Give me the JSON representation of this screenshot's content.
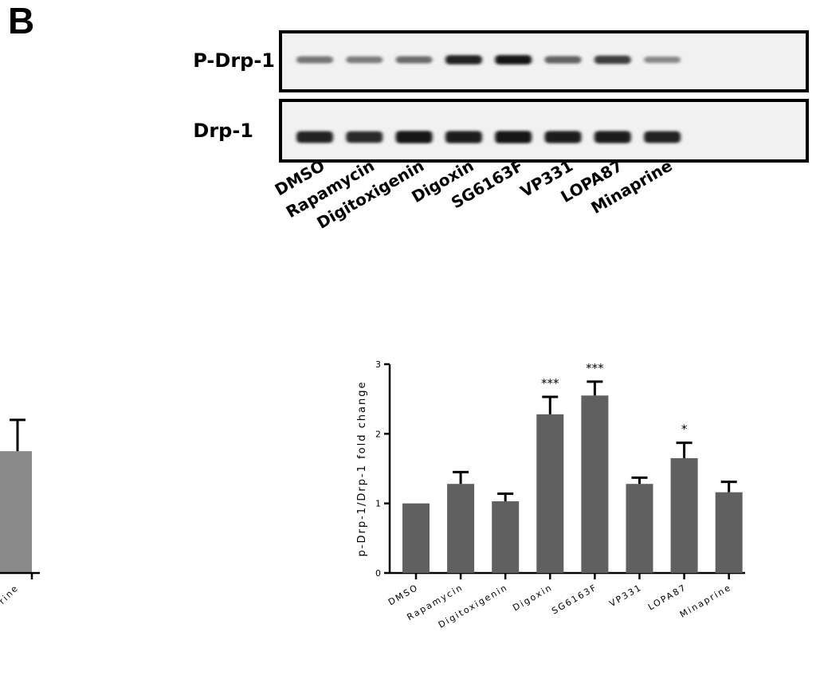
{
  "panel": {
    "letter": "B"
  },
  "blot": {
    "rows": [
      "P-Drp-1",
      "Drp-1"
    ],
    "lanes": [
      "DMSO",
      "Rapamycin",
      "Digitoxigenin",
      "Digoxin",
      "SG6163F",
      "VP331",
      "LOPA87",
      "Minaprine"
    ],
    "p_drp1_band_intensity": [
      0.45,
      0.42,
      0.5,
      0.9,
      0.95,
      0.55,
      0.75,
      0.35
    ],
    "drp1_band_intensity": [
      0.85,
      0.8,
      0.95,
      0.92,
      0.95,
      0.9,
      0.9,
      0.85
    ]
  },
  "left_fragment": {
    "bar_value": 1.75,
    "bar_error": 0.45,
    "partial_label": "rine"
  },
  "chart_data": {
    "type": "bar",
    "categories": [
      "DMSO",
      "Rapamycin",
      "Digitoxigenin",
      "Digoxin",
      "SG6163F",
      "VP331",
      "LOPA87",
      "Minaprine"
    ],
    "values": [
      1.0,
      1.28,
      1.03,
      2.28,
      2.55,
      1.28,
      1.65,
      1.16
    ],
    "errors": [
      0.0,
      0.17,
      0.11,
      0.25,
      0.2,
      0.09,
      0.22,
      0.15
    ],
    "significance": [
      "",
      "",
      "",
      "***",
      "***",
      "",
      "*",
      ""
    ],
    "ylabel": "p-Drp-1/Drp-1 fold change",
    "ylim": [
      0,
      3
    ],
    "yticks": [
      "0",
      "1",
      "2",
      "3"
    ],
    "bar_color": "#606060",
    "grid": false
  }
}
